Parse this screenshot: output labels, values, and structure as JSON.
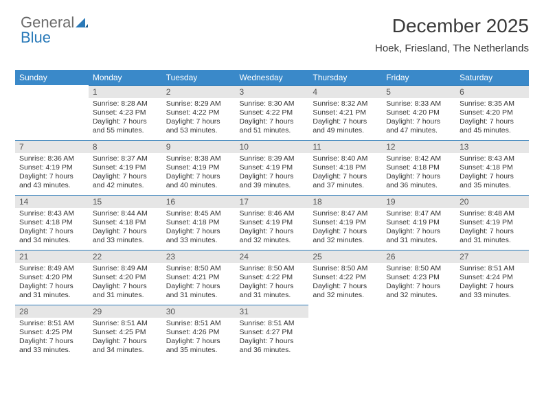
{
  "logo": {
    "part1": "General",
    "part2": "Blue"
  },
  "title": "December 2025",
  "location": "Hoek, Friesland, The Netherlands",
  "colors": {
    "header_bg": "#3a89c9",
    "header_text": "#ffffff",
    "daynum_bg": "#e6e6e6",
    "border": "#2a7ab9",
    "logo_gray": "#6b6b6b",
    "logo_blue": "#2a7ab9",
    "text": "#333333"
  },
  "weekdays": [
    "Sunday",
    "Monday",
    "Tuesday",
    "Wednesday",
    "Thursday",
    "Friday",
    "Saturday"
  ],
  "weeks": [
    [
      null,
      {
        "n": "1",
        "sr": "Sunrise: 8:28 AM",
        "ss": "Sunset: 4:23 PM",
        "dl": "Daylight: 7 hours and 55 minutes."
      },
      {
        "n": "2",
        "sr": "Sunrise: 8:29 AM",
        "ss": "Sunset: 4:22 PM",
        "dl": "Daylight: 7 hours and 53 minutes."
      },
      {
        "n": "3",
        "sr": "Sunrise: 8:30 AM",
        "ss": "Sunset: 4:22 PM",
        "dl": "Daylight: 7 hours and 51 minutes."
      },
      {
        "n": "4",
        "sr": "Sunrise: 8:32 AM",
        "ss": "Sunset: 4:21 PM",
        "dl": "Daylight: 7 hours and 49 minutes."
      },
      {
        "n": "5",
        "sr": "Sunrise: 8:33 AM",
        "ss": "Sunset: 4:20 PM",
        "dl": "Daylight: 7 hours and 47 minutes."
      },
      {
        "n": "6",
        "sr": "Sunrise: 8:35 AM",
        "ss": "Sunset: 4:20 PM",
        "dl": "Daylight: 7 hours and 45 minutes."
      }
    ],
    [
      {
        "n": "7",
        "sr": "Sunrise: 8:36 AM",
        "ss": "Sunset: 4:19 PM",
        "dl": "Daylight: 7 hours and 43 minutes."
      },
      {
        "n": "8",
        "sr": "Sunrise: 8:37 AM",
        "ss": "Sunset: 4:19 PM",
        "dl": "Daylight: 7 hours and 42 minutes."
      },
      {
        "n": "9",
        "sr": "Sunrise: 8:38 AM",
        "ss": "Sunset: 4:19 PM",
        "dl": "Daylight: 7 hours and 40 minutes."
      },
      {
        "n": "10",
        "sr": "Sunrise: 8:39 AM",
        "ss": "Sunset: 4:19 PM",
        "dl": "Daylight: 7 hours and 39 minutes."
      },
      {
        "n": "11",
        "sr": "Sunrise: 8:40 AM",
        "ss": "Sunset: 4:18 PM",
        "dl": "Daylight: 7 hours and 37 minutes."
      },
      {
        "n": "12",
        "sr": "Sunrise: 8:42 AM",
        "ss": "Sunset: 4:18 PM",
        "dl": "Daylight: 7 hours and 36 minutes."
      },
      {
        "n": "13",
        "sr": "Sunrise: 8:43 AM",
        "ss": "Sunset: 4:18 PM",
        "dl": "Daylight: 7 hours and 35 minutes."
      }
    ],
    [
      {
        "n": "14",
        "sr": "Sunrise: 8:43 AM",
        "ss": "Sunset: 4:18 PM",
        "dl": "Daylight: 7 hours and 34 minutes."
      },
      {
        "n": "15",
        "sr": "Sunrise: 8:44 AM",
        "ss": "Sunset: 4:18 PM",
        "dl": "Daylight: 7 hours and 33 minutes."
      },
      {
        "n": "16",
        "sr": "Sunrise: 8:45 AM",
        "ss": "Sunset: 4:18 PM",
        "dl": "Daylight: 7 hours and 33 minutes."
      },
      {
        "n": "17",
        "sr": "Sunrise: 8:46 AM",
        "ss": "Sunset: 4:19 PM",
        "dl": "Daylight: 7 hours and 32 minutes."
      },
      {
        "n": "18",
        "sr": "Sunrise: 8:47 AM",
        "ss": "Sunset: 4:19 PM",
        "dl": "Daylight: 7 hours and 32 minutes."
      },
      {
        "n": "19",
        "sr": "Sunrise: 8:47 AM",
        "ss": "Sunset: 4:19 PM",
        "dl": "Daylight: 7 hours and 31 minutes."
      },
      {
        "n": "20",
        "sr": "Sunrise: 8:48 AM",
        "ss": "Sunset: 4:19 PM",
        "dl": "Daylight: 7 hours and 31 minutes."
      }
    ],
    [
      {
        "n": "21",
        "sr": "Sunrise: 8:49 AM",
        "ss": "Sunset: 4:20 PM",
        "dl": "Daylight: 7 hours and 31 minutes."
      },
      {
        "n": "22",
        "sr": "Sunrise: 8:49 AM",
        "ss": "Sunset: 4:20 PM",
        "dl": "Daylight: 7 hours and 31 minutes."
      },
      {
        "n": "23",
        "sr": "Sunrise: 8:50 AM",
        "ss": "Sunset: 4:21 PM",
        "dl": "Daylight: 7 hours and 31 minutes."
      },
      {
        "n": "24",
        "sr": "Sunrise: 8:50 AM",
        "ss": "Sunset: 4:22 PM",
        "dl": "Daylight: 7 hours and 31 minutes."
      },
      {
        "n": "25",
        "sr": "Sunrise: 8:50 AM",
        "ss": "Sunset: 4:22 PM",
        "dl": "Daylight: 7 hours and 32 minutes."
      },
      {
        "n": "26",
        "sr": "Sunrise: 8:50 AM",
        "ss": "Sunset: 4:23 PM",
        "dl": "Daylight: 7 hours and 32 minutes."
      },
      {
        "n": "27",
        "sr": "Sunrise: 8:51 AM",
        "ss": "Sunset: 4:24 PM",
        "dl": "Daylight: 7 hours and 33 minutes."
      }
    ],
    [
      {
        "n": "28",
        "sr": "Sunrise: 8:51 AM",
        "ss": "Sunset: 4:25 PM",
        "dl": "Daylight: 7 hours and 33 minutes."
      },
      {
        "n": "29",
        "sr": "Sunrise: 8:51 AM",
        "ss": "Sunset: 4:25 PM",
        "dl": "Daylight: 7 hours and 34 minutes."
      },
      {
        "n": "30",
        "sr": "Sunrise: 8:51 AM",
        "ss": "Sunset: 4:26 PM",
        "dl": "Daylight: 7 hours and 35 minutes."
      },
      {
        "n": "31",
        "sr": "Sunrise: 8:51 AM",
        "ss": "Sunset: 4:27 PM",
        "dl": "Daylight: 7 hours and 36 minutes."
      },
      null,
      null,
      null
    ]
  ]
}
